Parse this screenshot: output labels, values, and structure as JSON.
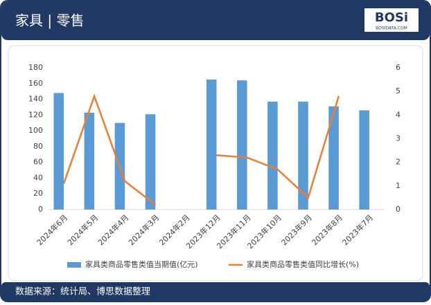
{
  "header": {
    "title": "家具 | 零售"
  },
  "logo": {
    "brand": "BOSi",
    "site": "BOSIDATA.COM"
  },
  "footer": {
    "source": "数据来源：统计局、博思数据整理"
  },
  "chart_data": {
    "type": "bar",
    "categories": [
      "2024年6月",
      "2024年5月",
      "2024年4月",
      "2024年3月",
      "2024年2月",
      "2023年12月",
      "2023年11月",
      "2023年10月",
      "2023年9月",
      "2023年8月",
      "2023年7月"
    ],
    "series": [
      {
        "name": "家具类商品零售类值当期值(亿元)",
        "type": "bar",
        "color": "#5b9bd5",
        "values": [
          148,
          123,
          110,
          121,
          null,
          165,
          164,
          137,
          137,
          131,
          126
        ]
      },
      {
        "name": "家具类商品零售类值同比增长(%)",
        "type": "line",
        "axis": "y2",
        "color": "#ed7d31",
        "values": [
          1.1,
          4.8,
          1.2,
          0.2,
          null,
          2.3,
          2.2,
          1.7,
          0.5,
          4.8,
          null
        ]
      }
    ],
    "ylim": [
      0,
      180
    ],
    "yticks": [
      0,
      20,
      40,
      60,
      80,
      100,
      120,
      140,
      160,
      180
    ],
    "y2lim": [
      0,
      6
    ],
    "y2ticks": [
      0,
      1,
      2,
      3,
      4,
      5,
      6
    ],
    "legend": "bottom"
  }
}
